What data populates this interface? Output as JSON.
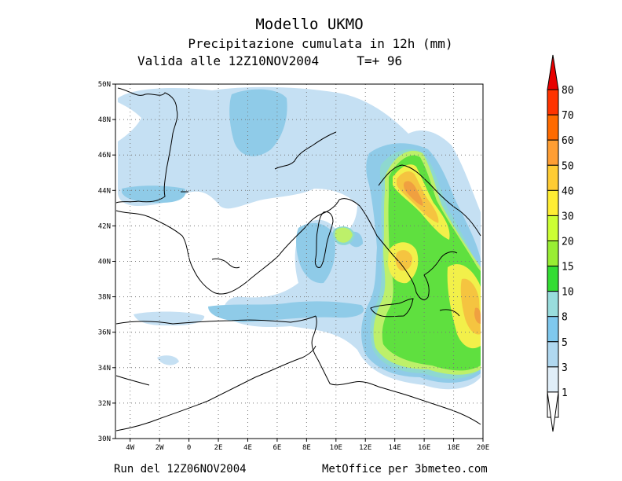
{
  "header": {
    "title": "Modello UKMO",
    "subtitle": "Precipitazione cumulata in 12h (mm)",
    "valid_line": "Valida alle 12Z10NOV2004     T=+ 96"
  },
  "footer": {
    "run": "Run del 12Z06NOV2004",
    "credit": "MetOffice per 3bmeteo.com"
  },
  "axes": {
    "lat_labels": [
      "50N",
      "48N",
      "46N",
      "44N",
      "42N",
      "40N",
      "38N",
      "36N",
      "34N",
      "32N",
      "30N"
    ],
    "lon_labels": [
      "4W",
      "2W",
      "0",
      "2E",
      "4E",
      "6E",
      "8E",
      "10E",
      "12E",
      "14E",
      "16E",
      "18E",
      "20E"
    ],
    "lat_range": [
      30,
      50
    ],
    "lon_range": [
      -5,
      20
    ]
  },
  "legend": {
    "levels": [
      "80",
      "70",
      "60",
      "50",
      "40",
      "30",
      "20",
      "15",
      "10",
      "8",
      "5",
      "3",
      "1"
    ],
    "colors": [
      "#e80000",
      "#ff3300",
      "#ff6a00",
      "#ff9e33",
      "#ffcc33",
      "#ffee33",
      "#ccff33",
      "#99ee33",
      "#33dd33",
      "#99dddd",
      "#7fc8ee",
      "#b0d8f0",
      "#e0eef8"
    ]
  },
  "colors": {
    "light_blue": "#c5e0f3",
    "mid_blue": "#8fcbe8",
    "teal": "#8ed8d0",
    "light_green": "#bdf06a",
    "green": "#5fe03f",
    "yellow": "#f2f04a",
    "orange": "#f5c440",
    "dark_orange": "#f0a040"
  }
}
